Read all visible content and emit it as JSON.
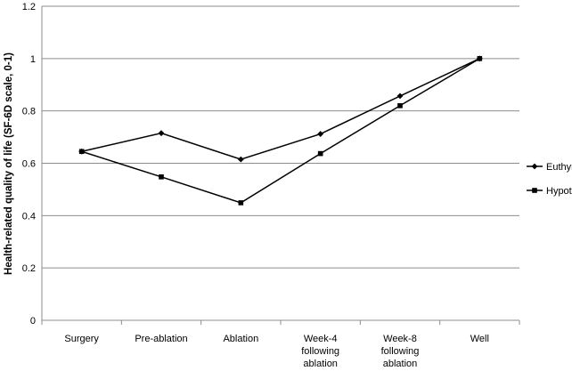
{
  "chart_data": {
    "type": "line",
    "title": "",
    "xlabel": "",
    "ylabel": "Health-related quality of life (SF-6D scale, 0-1)",
    "ylim": [
      0,
      1.2
    ],
    "yticks": [
      "0",
      "0.2",
      "0.4",
      "0.6",
      "0.8",
      "1",
      "1.2"
    ],
    "ytick_values": [
      0,
      0.2,
      0.4,
      0.6,
      0.8,
      1.0,
      1.2
    ],
    "grid": "horizontal",
    "legend_position": "right",
    "categories": [
      [
        "Surgery"
      ],
      [
        "Pre-ablation"
      ],
      [
        "Ablation"
      ],
      [
        "Week-4",
        "following",
        "ablation"
      ],
      [
        "Week-8",
        "following",
        "ablation"
      ],
      [
        "Well"
      ]
    ],
    "series": [
      {
        "name": "Euthyroid",
        "marker": "diamond",
        "values": [
          0.645,
          0.715,
          0.615,
          0.712,
          0.857,
          1.0
        ]
      },
      {
        "name": "Hypothyroid",
        "marker": "square",
        "values": [
          0.645,
          0.548,
          0.449,
          0.637,
          0.82,
          1.0
        ]
      }
    ],
    "colors": {
      "line": "#000000",
      "grid": "#8c8c8c"
    }
  }
}
